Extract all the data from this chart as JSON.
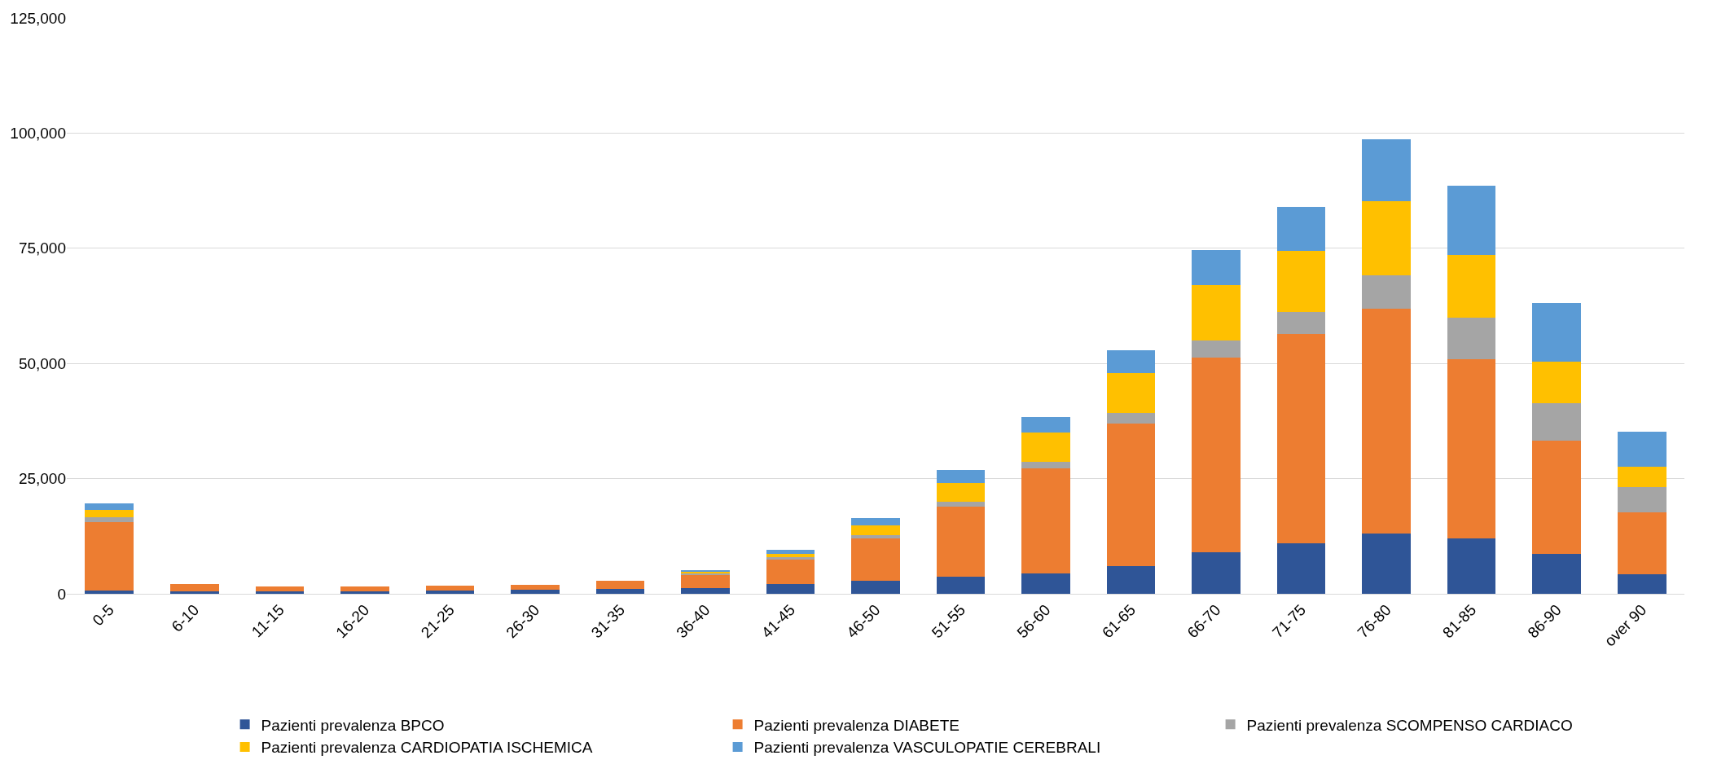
{
  "chart_data": {
    "type": "bar",
    "stacked": true,
    "categories": [
      "0-5",
      "6-10",
      "11-15",
      "16-20",
      "21-25",
      "26-30",
      "31-35",
      "36-40",
      "41-45",
      "46-50",
      "51-55",
      "56-60",
      "61-65",
      "66-70",
      "71-75",
      "76-80",
      "81-85",
      "86-90",
      "over 90"
    ],
    "series": [
      {
        "name": "Pazienti prevalenza BPCO",
        "color": "#2f5597",
        "values": [
          700,
          500,
          500,
          500,
          700,
          800,
          1000,
          1300,
          2100,
          2800,
          3800,
          4500,
          6100,
          9000,
          11000,
          13000,
          12000,
          8700,
          4300
        ]
      },
      {
        "name": "Pazienti prevalenza DIABETE",
        "color": "#ed7d31",
        "values": [
          14800,
          1600,
          1100,
          1100,
          1000,
          1200,
          1800,
          2800,
          5400,
          9300,
          15100,
          22800,
          30900,
          42200,
          45400,
          48800,
          39000,
          24500,
          13400
        ]
      },
      {
        "name": "Pazienti prevalenza SCOMPENSO CARDIACO",
        "color": "#a5a5a5",
        "values": [
          1100,
          null,
          null,
          null,
          null,
          null,
          null,
          300,
          400,
          600,
          1100,
          1400,
          2300,
          3800,
          4800,
          7400,
          9000,
          8200,
          5500
        ]
      },
      {
        "name": "Pazienti prevalenza CARDIOPATIA ISCHEMICA",
        "color": "#ffc000",
        "values": [
          1700,
          null,
          null,
          null,
          null,
          null,
          null,
          400,
          700,
          2100,
          4100,
          6300,
          8600,
          12000,
          13300,
          16000,
          13500,
          9000,
          4400
        ]
      },
      {
        "name": "Pazienti prevalenza VASCULOPATIE CEREBRALI",
        "color": "#5b9bd5",
        "values": [
          1400,
          null,
          null,
          null,
          null,
          null,
          null,
          400,
          1000,
          1600,
          2700,
          3300,
          4900,
          7600,
          9500,
          13500,
          15000,
          12800,
          7600
        ]
      }
    ],
    "ylim": [
      0,
      125000
    ],
    "yticks": [
      {
        "value": 0,
        "label": "0"
      },
      {
        "value": 25000,
        "label": "25,000"
      },
      {
        "value": 50000,
        "label": "50,000"
      },
      {
        "value": 75000,
        "label": "75,000"
      },
      {
        "value": 100000,
        "label": "100,000"
      },
      {
        "value": 125000,
        "label": "125,000"
      }
    ],
    "grid": "y",
    "legend": "bottom"
  }
}
